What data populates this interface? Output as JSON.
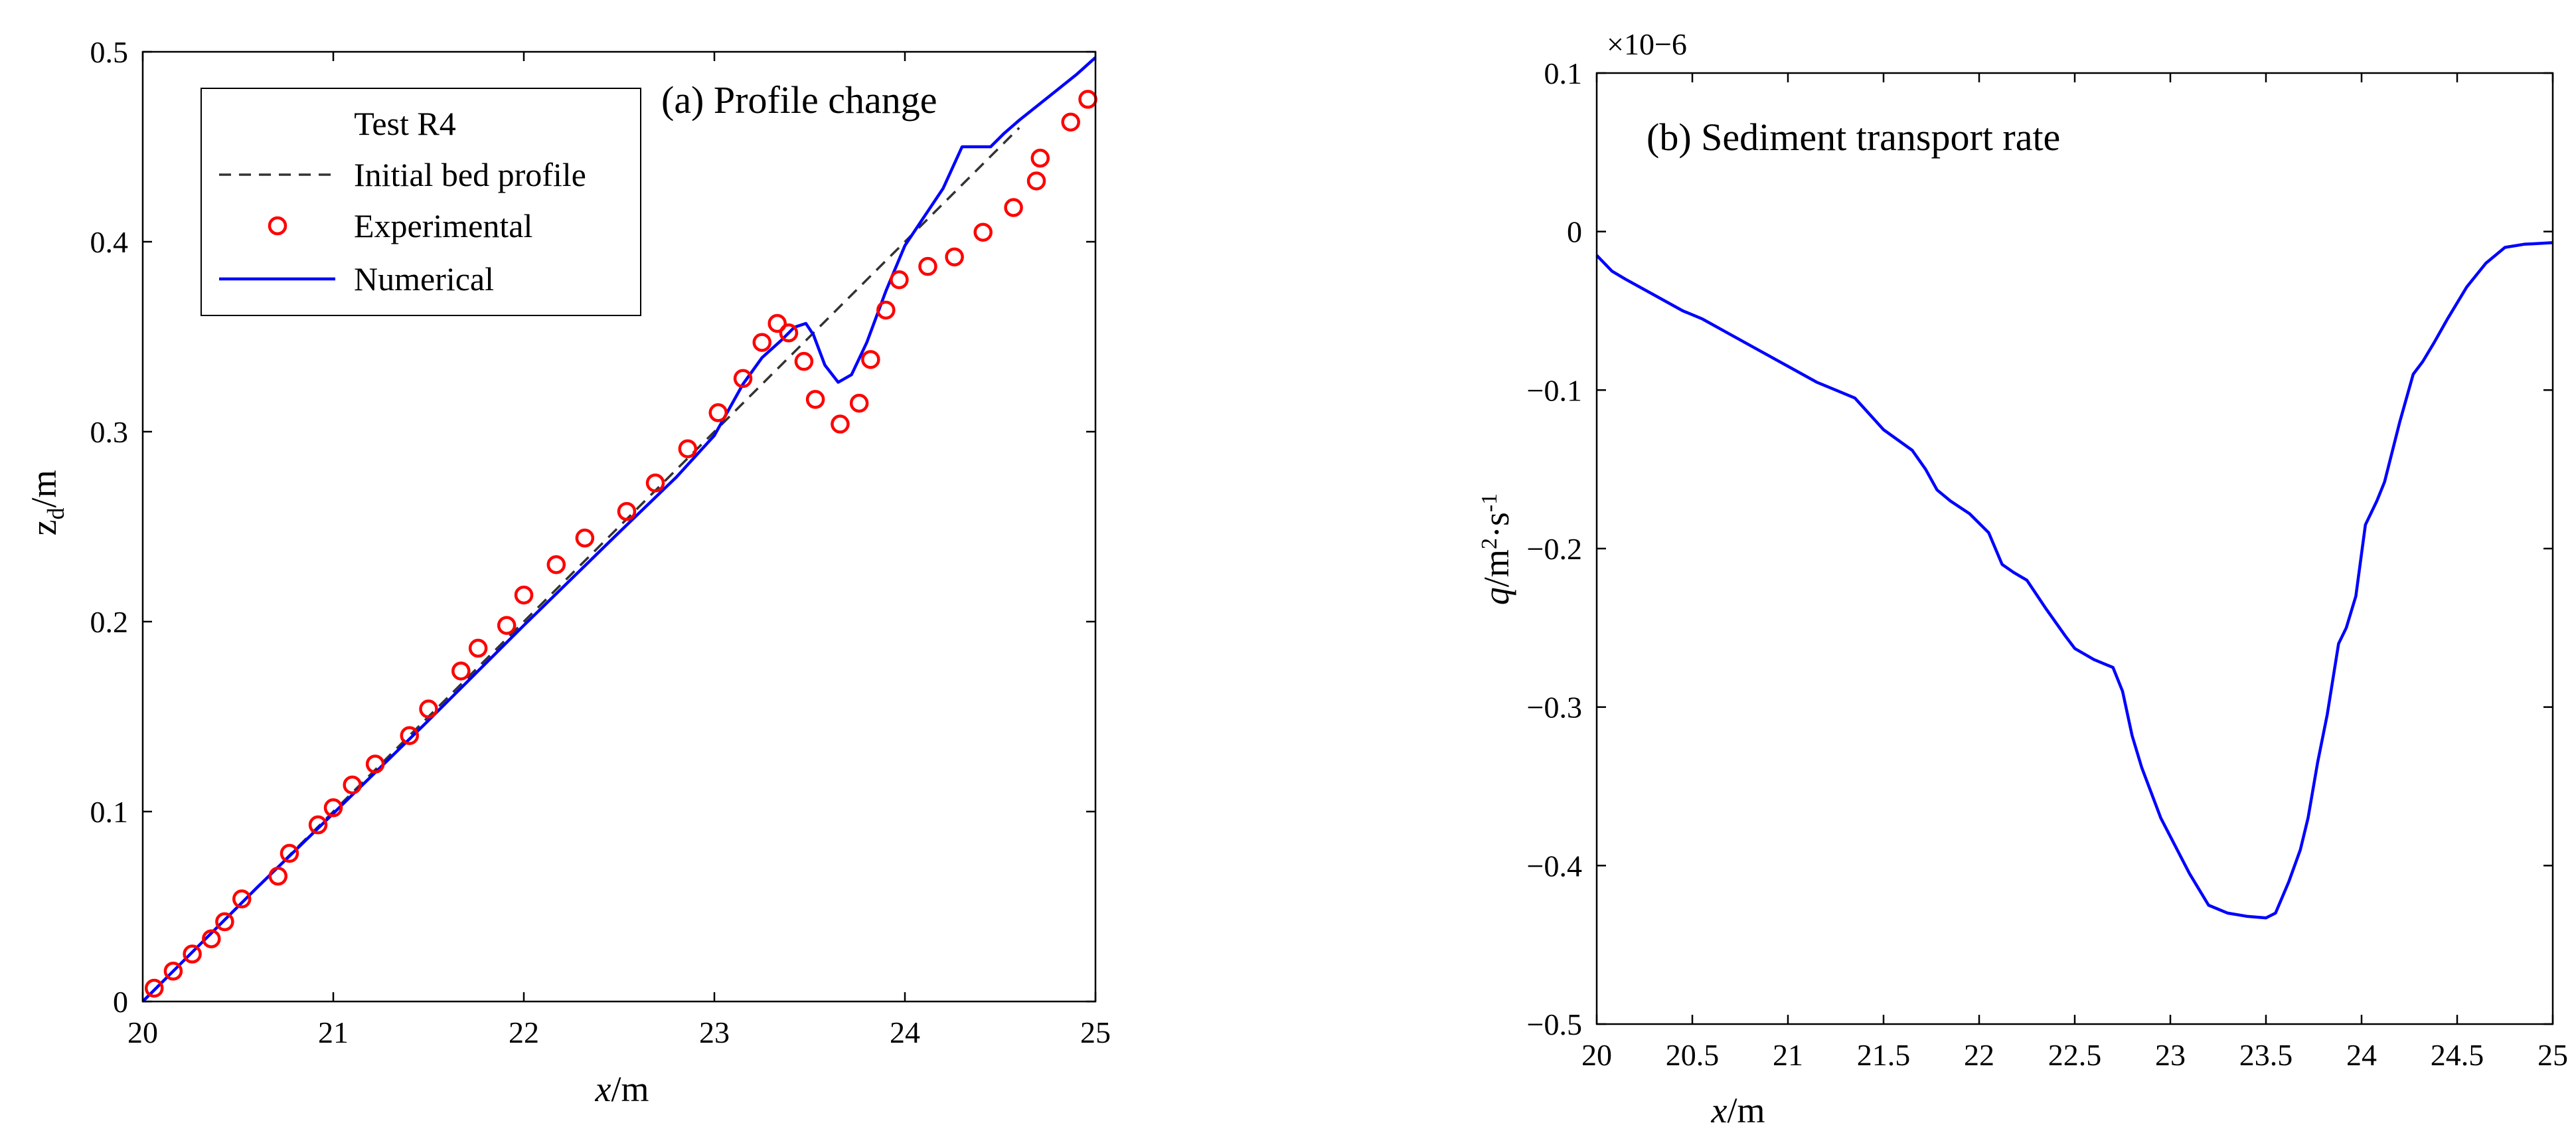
{
  "chart_data": [
    {
      "type": "line",
      "panel_label": "(a) Profile change",
      "xlabel": "x/m",
      "ylabel": "zd/m",
      "xlim": [
        20,
        25
      ],
      "ylim": [
        0,
        0.5
      ],
      "xticks": [
        "20",
        "21",
        "22",
        "23",
        "24",
        "25"
      ],
      "yticks": [
        "0",
        "0.1",
        "0.2",
        "0.3",
        "0.4",
        "0.5"
      ],
      "legend": {
        "title": "Test R4",
        "placement": "top-left",
        "entries": [
          "Initial bed profile",
          "Experimental",
          "Numerical"
        ]
      },
      "series": [
        {
          "name": "Initial bed profile",
          "style": "dashed",
          "color": "#333333",
          "x": [
            20.0,
            24.6
          ],
          "y": [
            0.0,
            0.46
          ]
        },
        {
          "name": "Experimental",
          "style": "circle-markers",
          "color": "#ff0000",
          "x": [
            20.06,
            20.16,
            20.26,
            20.36,
            20.43,
            20.52,
            20.71,
            20.77,
            20.92,
            21.0,
            21.1,
            21.22,
            21.4,
            21.5,
            21.67,
            21.76,
            21.91,
            22.0,
            22.17,
            22.32,
            22.54,
            22.69,
            22.86,
            23.02,
            23.15,
            23.25,
            23.33,
            23.39,
            23.47,
            23.53,
            23.66,
            23.76,
            23.82,
            23.9,
            23.97,
            24.12,
            24.26,
            24.41,
            24.57,
            24.69,
            24.71,
            24.87,
            24.96
          ],
          "y": [
            0.007,
            0.016,
            0.025,
            0.033,
            0.042,
            0.054,
            0.066,
            0.078,
            0.093,
            0.102,
            0.114,
            0.125,
            0.14,
            0.154,
            0.174,
            0.186,
            0.198,
            0.214,
            0.23,
            0.244,
            0.258,
            0.273,
            0.291,
            0.31,
            0.328,
            0.347,
            0.357,
            0.352,
            0.337,
            0.317,
            0.304,
            0.315,
            0.338,
            0.364,
            0.38,
            0.387,
            0.392,
            0.405,
            0.418,
            0.432,
            0.444,
            0.463,
            0.475
          ]
        },
        {
          "name": "Numerical",
          "style": "solid",
          "color": "#0000ff",
          "x": [
            20.0,
            20.3,
            20.6,
            21.0,
            21.5,
            22.0,
            22.5,
            22.8,
            23.0,
            23.15,
            23.25,
            23.35,
            23.42,
            23.48,
            23.52,
            23.58,
            23.65,
            23.72,
            23.8,
            23.9,
            24.0,
            24.1,
            24.2,
            24.3,
            24.38,
            24.45,
            24.52,
            24.6,
            24.7,
            24.8,
            24.9,
            25.0
          ],
          "y": [
            0.0,
            0.03,
            0.06,
            0.099,
            0.148,
            0.198,
            0.247,
            0.276,
            0.298,
            0.325,
            0.339,
            0.348,
            0.355,
            0.357,
            0.351,
            0.335,
            0.326,
            0.33,
            0.347,
            0.374,
            0.398,
            0.413,
            0.428,
            0.45,
            0.45,
            0.45,
            0.457,
            0.464,
            0.472,
            0.48,
            0.488,
            0.497
          ]
        }
      ]
    },
    {
      "type": "line",
      "panel_label": "(b) Sediment transport rate",
      "xlabel": "x/m",
      "ylabel": "q/m2·s-1",
      "scale_label": "×10−6",
      "xlim": [
        20,
        25
      ],
      "ylim": [
        -0.5,
        0.1
      ],
      "xticks": [
        "20",
        "20.5",
        "21",
        "21.5",
        "22",
        "22.5",
        "23",
        "23.5",
        "24",
        "24.5",
        "25"
      ],
      "yticks": [
        "0.1",
        "0",
        "−0.1",
        "−0.2",
        "−0.3",
        "−0.4",
        "−0.5"
      ],
      "series": [
        {
          "name": "q",
          "style": "solid",
          "color": "#0000ff",
          "x": [
            20.0,
            20.08,
            20.15,
            20.3,
            20.45,
            20.55,
            20.7,
            20.85,
            21.0,
            21.15,
            21.25,
            21.35,
            21.5,
            21.65,
            21.72,
            21.78,
            21.85,
            21.95,
            22.05,
            22.12,
            22.18,
            22.25,
            22.35,
            22.45,
            22.5,
            22.6,
            22.7,
            22.75,
            22.8,
            22.85,
            22.95,
            23.1,
            23.2,
            23.3,
            23.4,
            23.5,
            23.55,
            23.62,
            23.68,
            23.72,
            23.77,
            23.82,
            23.88,
            23.92,
            23.97,
            24.02,
            24.08,
            24.12,
            24.2,
            24.27,
            24.32,
            24.38,
            24.45,
            24.55,
            24.65,
            24.75,
            24.85,
            25.0
          ],
          "y": [
            -0.015,
            -0.025,
            -0.03,
            -0.04,
            -0.05,
            -0.055,
            -0.065,
            -0.075,
            -0.085,
            -0.095,
            -0.1,
            -0.105,
            -0.125,
            -0.138,
            -0.15,
            -0.163,
            -0.17,
            -0.178,
            -0.19,
            -0.21,
            -0.215,
            -0.22,
            -0.238,
            -0.255,
            -0.263,
            -0.27,
            -0.275,
            -0.29,
            -0.318,
            -0.338,
            -0.37,
            -0.405,
            -0.425,
            -0.43,
            -0.432,
            -0.433,
            -0.43,
            -0.41,
            -0.39,
            -0.37,
            -0.335,
            -0.305,
            -0.26,
            -0.25,
            -0.23,
            -0.185,
            -0.17,
            -0.158,
            -0.12,
            -0.09,
            -0.082,
            -0.07,
            -0.055,
            -0.035,
            -0.02,
            -0.01,
            -0.008,
            -0.007
          ]
        }
      ]
    }
  ]
}
